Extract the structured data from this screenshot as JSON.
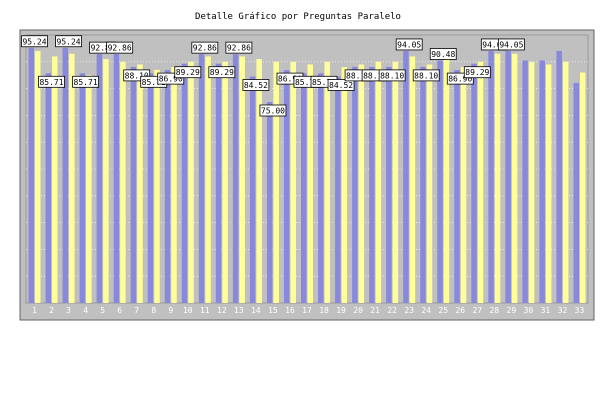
{
  "chart_data": {
    "type": "bar",
    "title": "Detalle Gráfico por Preguntas Paralelo",
    "xlabel": "",
    "ylabel": "",
    "ylim": [
      0,
      100
    ],
    "yticks": [
      10,
      20,
      30,
      40,
      50,
      60,
      70,
      80,
      90
    ],
    "grid": true,
    "colors": {
      "series_a": "#8888dd",
      "series_b": "#ffff99",
      "plot_bg": "#c0c0c0",
      "frame": "#888888"
    },
    "categories": [
      "1",
      "2",
      "3",
      "4",
      "5",
      "6",
      "7",
      "8",
      "9",
      "10",
      "11",
      "12",
      "13",
      "14",
      "15",
      "16",
      "17",
      "18",
      "19",
      "20",
      "21",
      "22",
      "23",
      "24",
      "25",
      "26",
      "27",
      "28",
      "29",
      "30",
      "31",
      "32",
      "33"
    ],
    "series": [
      {
        "values": [
          95.24,
          85.71,
          95.24,
          85.71,
          92.86,
          92.86,
          88.1,
          85.71,
          86.9,
          89.29,
          92.86,
          89.29,
          92.86,
          84.52,
          75.0,
          86.9,
          85.71,
          85.71,
          84.52,
          88.1,
          88.1,
          88.1,
          94.05,
          88.1,
          90.48,
          86.9,
          89.29,
          94.05,
          94.05,
          90.48,
          90.48,
          94.05,
          82.14
        ]
      },
      {
        "values": [
          94.0,
          92.0,
          93.0,
          85.0,
          91.0,
          90.0,
          89.0,
          87.0,
          88.0,
          90.0,
          92.0,
          90.0,
          92.0,
          91.0,
          90.0,
          90.0,
          89.0,
          90.0,
          88.0,
          89.0,
          90.0,
          90.0,
          92.0,
          89.0,
          91.0,
          88.0,
          90.0,
          93.0,
          93.0,
          90.0,
          89.0,
          90.0,
          86.0
        ]
      }
    ],
    "data_labels": [
      {
        "index": 0,
        "text": "95.24"
      },
      {
        "index": 1,
        "text": "85.71"
      },
      {
        "index": 2,
        "text": "95.24"
      },
      {
        "index": 3,
        "text": "85.71"
      },
      {
        "index": 4,
        "text": "92.86"
      },
      {
        "index": 5,
        "text": "92.86"
      },
      {
        "index": 6,
        "text": "88.10"
      },
      {
        "index": 7,
        "text": "85.71"
      },
      {
        "index": 8,
        "text": "86.90"
      },
      {
        "index": 9,
        "text": "89.29"
      },
      {
        "index": 10,
        "text": "92.86"
      },
      {
        "index": 11,
        "text": "89.29"
      },
      {
        "index": 12,
        "text": "92.86"
      },
      {
        "index": 13,
        "text": "84.52"
      },
      {
        "index": 14,
        "text": "75.00"
      },
      {
        "index": 15,
        "text": "86.90"
      },
      {
        "index": 16,
        "text": "85.71"
      },
      {
        "index": 17,
        "text": "85.71"
      },
      {
        "index": 18,
        "text": "84.52"
      },
      {
        "index": 19,
        "text": "88.10"
      },
      {
        "index": 20,
        "text": "88.10"
      },
      {
        "index": 21,
        "text": "88.10"
      },
      {
        "index": 22,
        "text": "94.05"
      },
      {
        "index": 23,
        "text": "88.10"
      },
      {
        "index": 24,
        "text": "90.48"
      },
      {
        "index": 25,
        "text": "86.90"
      },
      {
        "index": 26,
        "text": "89.29"
      },
      {
        "index": 27,
        "text": "94.05"
      },
      {
        "index": 28,
        "text": "94.05"
      }
    ]
  }
}
